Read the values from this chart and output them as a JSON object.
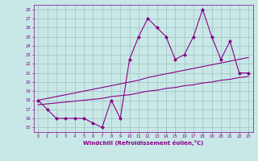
{
  "x": [
    0,
    1,
    2,
    3,
    4,
    5,
    6,
    7,
    8,
    9,
    10,
    11,
    12,
    13,
    14,
    15,
    16,
    17,
    18,
    19,
    20,
    21,
    22,
    23
  ],
  "y_main": [
    18.0,
    17.0,
    16.0,
    16.0,
    16.0,
    16.0,
    15.5,
    15.0,
    18.0,
    16.0,
    22.5,
    25.0,
    27.0,
    26.0,
    25.0,
    22.5,
    23.0,
    25.0,
    28.0,
    25.0,
    22.5,
    24.5,
    21.0,
    21.0
  ],
  "y_upper": [
    18.0,
    18.2,
    18.4,
    18.6,
    18.8,
    19.0,
    19.2,
    19.4,
    19.6,
    19.8,
    20.0,
    20.2,
    20.5,
    20.7,
    20.9,
    21.1,
    21.3,
    21.5,
    21.7,
    21.9,
    22.1,
    22.3,
    22.5,
    22.7
  ],
  "y_lower": [
    17.5,
    17.6,
    17.7,
    17.8,
    17.9,
    18.0,
    18.1,
    18.2,
    18.4,
    18.5,
    18.6,
    18.8,
    19.0,
    19.1,
    19.3,
    19.4,
    19.6,
    19.7,
    19.9,
    20.0,
    20.2,
    20.3,
    20.5,
    20.6
  ],
  "line_color": "#880088",
  "bg_color": "#c8e8e8",
  "grid_color": "#a0c0c0",
  "xlabel": "Windchill (Refroidissement éolien,°C)",
  "ylabel_ticks": [
    15,
    16,
    17,
    18,
    19,
    20,
    21,
    22,
    23,
    24,
    25,
    26,
    27,
    28
  ],
  "xlim": [
    -0.5,
    23.5
  ],
  "ylim": [
    14.5,
    28.5
  ]
}
